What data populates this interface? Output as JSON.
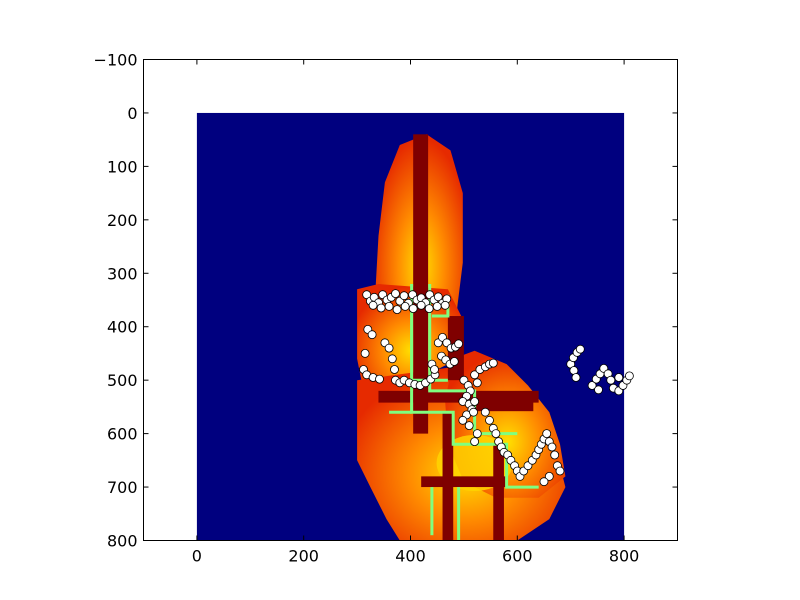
{
  "chart_data": {
    "type": "heatmap",
    "title": "",
    "xlabel": "",
    "ylabel": "",
    "xlim": [
      -100,
      900
    ],
    "ylim": [
      800,
      -100
    ],
    "x_ticks": [
      "0",
      "200",
      "400",
      "600",
      "800"
    ],
    "y_ticks": [
      "−100",
      "0",
      "100",
      "200",
      "300",
      "400",
      "500",
      "600",
      "700",
      "800"
    ],
    "x_tick_values": [
      0,
      200,
      400,
      600,
      800
    ],
    "y_tick_values": [
      -100,
      0,
      100,
      200,
      300,
      400,
      500,
      600,
      700,
      800
    ],
    "image_extent": [
      0,
      800,
      800,
      0
    ],
    "grid": false,
    "legend": "none",
    "colors": {
      "background": "#00007f",
      "cost_low": "#ffd400",
      "cost_mid": "#ff6a00",
      "cost_high": "#e51c00",
      "walls": "#7f0000",
      "edges": "#7fff7f",
      "points": "#ffffff"
    },
    "series": [
      {
        "type": "scatter",
        "marker": "circle-white",
        "points": [
          [
            318,
            340
          ],
          [
            325,
            352
          ],
          [
            332,
            345
          ],
          [
            340,
            355
          ],
          [
            348,
            340
          ],
          [
            356,
            350
          ],
          [
            364,
            345
          ],
          [
            372,
            338
          ],
          [
            380,
            352
          ],
          [
            388,
            342
          ],
          [
            396,
            356
          ],
          [
            404,
            340
          ],
          [
            412,
            350
          ],
          [
            420,
            346
          ],
          [
            428,
            355
          ],
          [
            436,
            340
          ],
          [
            444,
            350
          ],
          [
            452,
            344
          ],
          [
            460,
            356
          ],
          [
            468,
            348
          ],
          [
            330,
            360
          ],
          [
            345,
            365
          ],
          [
            360,
            362
          ],
          [
            375,
            368
          ],
          [
            390,
            362
          ],
          [
            405,
            366
          ],
          [
            420,
            360
          ],
          [
            435,
            366
          ],
          [
            450,
            362
          ],
          [
            465,
            360
          ],
          [
            320,
            405
          ],
          [
            328,
            415
          ],
          [
            315,
            450
          ],
          [
            312,
            480
          ],
          [
            318,
            490
          ],
          [
            330,
            495
          ],
          [
            342,
            498
          ],
          [
            352,
            430
          ],
          [
            360,
            440
          ],
          [
            366,
            460
          ],
          [
            370,
            480
          ],
          [
            372,
            500
          ],
          [
            380,
            505
          ],
          [
            388,
            500
          ],
          [
            398,
            505
          ],
          [
            408,
            508
          ],
          [
            418,
            510
          ],
          [
            428,
            505
          ],
          [
            438,
            498
          ],
          [
            446,
            490
          ],
          [
            452,
            430
          ],
          [
            460,
            420
          ],
          [
            468,
            430
          ],
          [
            476,
            440
          ],
          [
            484,
            438
          ],
          [
            490,
            432
          ],
          [
            458,
            455
          ],
          [
            466,
            462
          ],
          [
            474,
            470
          ],
          [
            482,
            465
          ],
          [
            440,
            470
          ],
          [
            445,
            480
          ],
          [
            500,
            500
          ],
          [
            508,
            510
          ],
          [
            512,
            520
          ],
          [
            505,
            530
          ],
          [
            498,
            540
          ],
          [
            510,
            545
          ],
          [
            515,
            555
          ],
          [
            505,
            565
          ],
          [
            498,
            575
          ],
          [
            510,
            585
          ],
          [
            518,
            560
          ],
          [
            520,
            540
          ],
          [
            525,
            600
          ],
          [
            520,
            615
          ],
          [
            540,
            560
          ],
          [
            548,
            575
          ],
          [
            555,
            590
          ],
          [
            560,
            600
          ],
          [
            565,
            615
          ],
          [
            570,
            625
          ],
          [
            575,
            635
          ],
          [
            582,
            640
          ],
          [
            588,
            650
          ],
          [
            595,
            660
          ],
          [
            600,
            670
          ],
          [
            605,
            680
          ],
          [
            612,
            670
          ],
          [
            620,
            660
          ],
          [
            628,
            650
          ],
          [
            635,
            640
          ],
          [
            640,
            630
          ],
          [
            645,
            620
          ],
          [
            650,
            610
          ],
          [
            655,
            600
          ],
          [
            660,
            615
          ],
          [
            665,
            625
          ],
          [
            670,
            640
          ],
          [
            675,
            660
          ],
          [
            680,
            670
          ],
          [
            660,
            680
          ],
          [
            650,
            690
          ],
          [
            520,
            490
          ],
          [
            530,
            480
          ],
          [
            540,
            475
          ],
          [
            548,
            470
          ],
          [
            555,
            468
          ],
          [
            525,
            505
          ],
          [
            700,
            470
          ],
          [
            705,
            458
          ],
          [
            712,
            448
          ],
          [
            718,
            442
          ],
          [
            706,
            482
          ],
          [
            710,
            495
          ],
          [
            740,
            510
          ],
          [
            748,
            498
          ],
          [
            755,
            488
          ],
          [
            762,
            478
          ],
          [
            770,
            488
          ],
          [
            775,
            500
          ],
          [
            780,
            515
          ],
          [
            790,
            520
          ],
          [
            798,
            510
          ],
          [
            805,
            500
          ],
          [
            810,
            492
          ],
          [
            790,
            495
          ],
          [
            752,
            518
          ]
        ]
      }
    ]
  }
}
